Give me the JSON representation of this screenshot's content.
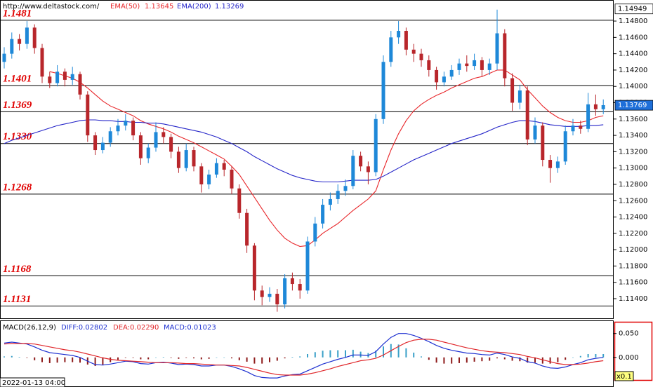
{
  "chart_data": [
    {
      "type": "candlestick",
      "site": "http://www.deltastock.com/",
      "time_label": "2022-01-13 04:00",
      "ylim": [
        1.11151,
        1.15058
      ],
      "yticks": [
        {
          "value": 1.148,
          "label": "1.14800"
        },
        {
          "value": 1.146,
          "label": "1.14600"
        },
        {
          "value": 1.144,
          "label": "1.14400"
        },
        {
          "value": 1.142,
          "label": "1.14200"
        },
        {
          "value": 1.14,
          "label": "1.14000"
        },
        {
          "value": 1.138,
          "label": "1.13800"
        },
        {
          "value": 1.136,
          "label": "1.13600"
        },
        {
          "value": 1.134,
          "label": "1.13400"
        },
        {
          "value": 1.132,
          "label": "1.13200"
        },
        {
          "value": 1.13,
          "label": "1.13000"
        },
        {
          "value": 1.128,
          "label": "1.12800"
        },
        {
          "value": 1.126,
          "label": "1.12600"
        },
        {
          "value": 1.124,
          "label": "1.12400"
        },
        {
          "value": 1.122,
          "label": "1.12200"
        },
        {
          "value": 1.12,
          "label": "1.12000"
        },
        {
          "value": 1.118,
          "label": "1.11800"
        },
        {
          "value": 1.116,
          "label": "1.11600"
        },
        {
          "value": 1.114,
          "label": "1.11400"
        }
      ],
      "up_color": "#1e88d8",
      "down_color": "#b8262b",
      "open": [
        1.143,
        1.144,
        1.1458,
        1.1452,
        1.1472,
        1.1447,
        1.1412,
        1.1404,
        1.1418,
        1.1408,
        1.1415,
        1.139,
        1.134,
        1.1322,
        1.1331,
        1.1345,
        1.1352,
        1.1358,
        1.134,
        1.1312,
        1.1325,
        1.1344,
        1.1338,
        1.132,
        1.13,
        1.1322,
        1.1302,
        1.128,
        1.1292,
        1.1306,
        1.1298,
        1.1275,
        1.1245,
        1.1205,
        1.115,
        1.1142,
        1.1146,
        1.1133,
        1.1165,
        1.1158,
        1.115,
        1.121,
        1.1232,
        1.1255,
        1.1262,
        1.1272,
        1.1278,
        1.1315,
        1.1302,
        1.1295,
        1.136,
        1.143,
        1.146,
        1.1468,
        1.1445,
        1.144,
        1.1432,
        1.142,
        1.1405,
        1.1412,
        1.142,
        1.1428,
        1.1425,
        1.1432,
        1.142,
        1.1428,
        1.1465,
        1.141,
        1.138,
        1.1395,
        1.1335,
        1.1352,
        1.131,
        1.13,
        1.1308,
        1.1345,
        1.1352,
        1.1348,
        1.1378,
        1.1372
      ],
      "high": [
        1.1448,
        1.1466,
        1.1464,
        1.148,
        1.1476,
        1.1452,
        1.1418,
        1.1426,
        1.1422,
        1.1424,
        1.1418,
        1.1394,
        1.1344,
        1.1338,
        1.135,
        1.136,
        1.1366,
        1.1362,
        1.1344,
        1.133,
        1.1356,
        1.135,
        1.1342,
        1.1326,
        1.133,
        1.1326,
        1.1306,
        1.1298,
        1.1312,
        1.131,
        1.1302,
        1.128,
        1.125,
        1.1208,
        1.1156,
        1.1154,
        1.1152,
        1.117,
        1.1172,
        1.1164,
        1.1216,
        1.124,
        1.1262,
        1.127,
        1.128,
        1.1286,
        1.1322,
        1.132,
        1.1308,
        1.1366,
        1.1438,
        1.1468,
        1.148,
        1.1472,
        1.1452,
        1.1446,
        1.1438,
        1.1424,
        1.1418,
        1.1426,
        1.1434,
        1.1438,
        1.144,
        1.1436,
        1.1434,
        1.1494,
        1.147,
        1.1416,
        1.1402,
        1.14,
        1.1362,
        1.1356,
        1.1316,
        1.1314,
        1.1352,
        1.136,
        1.1358,
        1.1392,
        1.139,
        1.1384
      ],
      "low": [
        1.1422,
        1.1434,
        1.1444,
        1.1446,
        1.144,
        1.1404,
        1.1398,
        1.14,
        1.14,
        1.1402,
        1.1384,
        1.1332,
        1.1316,
        1.1318,
        1.1326,
        1.134,
        1.1346,
        1.1334,
        1.1304,
        1.1306,
        1.132,
        1.133,
        1.1312,
        1.1294,
        1.1296,
        1.1296,
        1.127,
        1.1274,
        1.1288,
        1.129,
        1.1268,
        1.1238,
        1.1196,
        1.1138,
        1.1132,
        1.1136,
        1.1124,
        1.1128,
        1.115,
        1.114,
        1.1146,
        1.1204,
        1.1226,
        1.1248,
        1.1256,
        1.1266,
        1.1274,
        1.1296,
        1.128,
        1.129,
        1.1354,
        1.1424,
        1.1452,
        1.1438,
        1.143,
        1.1424,
        1.1412,
        1.1396,
        1.14,
        1.1408,
        1.1414,
        1.1418,
        1.142,
        1.1412,
        1.1414,
        1.142,
        1.14,
        1.137,
        1.1372,
        1.1328,
        1.133,
        1.1302,
        1.1282,
        1.1294,
        1.1304,
        1.134,
        1.1342,
        1.1344,
        1.1364,
        1.1366
      ],
      "close": [
        1.144,
        1.1458,
        1.1452,
        1.1472,
        1.1447,
        1.1412,
        1.1404,
        1.1418,
        1.1408,
        1.1415,
        1.139,
        1.134,
        1.1322,
        1.1331,
        1.1345,
        1.1352,
        1.1358,
        1.134,
        1.1312,
        1.1325,
        1.1344,
        1.1338,
        1.132,
        1.13,
        1.1322,
        1.1302,
        1.128,
        1.1292,
        1.1306,
        1.1298,
        1.1275,
        1.1245,
        1.1205,
        1.115,
        1.1142,
        1.1146,
        1.1133,
        1.1165,
        1.1158,
        1.115,
        1.121,
        1.1232,
        1.1255,
        1.1262,
        1.1272,
        1.1278,
        1.1315,
        1.1302,
        1.1295,
        1.136,
        1.143,
        1.146,
        1.1468,
        1.1445,
        1.144,
        1.1432,
        1.142,
        1.1405,
        1.1412,
        1.142,
        1.1428,
        1.1425,
        1.1432,
        1.142,
        1.1428,
        1.1465,
        1.141,
        1.138,
        1.1395,
        1.1335,
        1.1352,
        1.131,
        1.13,
        1.1308,
        1.1345,
        1.1352,
        1.1348,
        1.1378,
        1.1372,
        1.1377
      ],
      "series": [
        {
          "name": "EMA(50)",
          "value": 1.13645,
          "color": "#e8262a",
          "values": [
            null,
            null,
            null,
            null,
            null,
            null,
            1.1418,
            1.1416,
            1.1413,
            1.141,
            1.1405,
            1.1398,
            1.139,
            1.1382,
            1.1376,
            1.1372,
            1.1368,
            1.1364,
            1.1358,
            1.1354,
            1.1351,
            1.1348,
            1.1344,
            1.1339,
            1.1335,
            1.1331,
            1.1326,
            1.1321,
            1.1316,
            1.1311,
            1.1302,
            1.1292,
            1.1278,
            1.1264,
            1.125,
            1.1236,
            1.1224,
            1.1214,
            1.1208,
            1.1204,
            1.1205,
            1.1212,
            1.122,
            1.1226,
            1.1232,
            1.124,
            1.1248,
            1.1255,
            1.1262,
            1.1272,
            1.1298,
            1.1322,
            1.1342,
            1.1358,
            1.137,
            1.1378,
            1.1384,
            1.1389,
            1.1393,
            1.1398,
            1.1402,
            1.1406,
            1.141,
            1.1412,
            1.1416,
            1.142,
            1.142,
            1.1414,
            1.1408,
            1.1396,
            1.1386,
            1.1376,
            1.1368,
            1.1362,
            1.1358,
            1.1356,
            1.1356,
            1.1358,
            1.1362,
            1.1364
          ]
        },
        {
          "name": "EMA(200)",
          "value": 1.13269,
          "color": "#2424c8",
          "values": [
            1.133,
            1.1334,
            1.1337,
            1.134,
            1.1343,
            1.1346,
            1.1349,
            1.1352,
            1.1354,
            1.1356,
            1.1358,
            1.1359,
            1.1359,
            1.1358,
            1.1358,
            1.1357,
            1.1357,
            1.1356,
            1.1356,
            1.1355,
            1.1355,
            1.1354,
            1.1352,
            1.135,
            1.1348,
            1.1346,
            1.1344,
            1.1341,
            1.1338,
            1.1334,
            1.133,
            1.1325,
            1.132,
            1.1314,
            1.1309,
            1.1304,
            1.1299,
            1.1295,
            1.1291,
            1.1288,
            1.1286,
            1.1284,
            1.1283,
            1.1283,
            1.1283,
            1.1284,
            1.1285,
            1.1285,
            1.1285,
            1.1286,
            1.129,
            1.1295,
            1.13,
            1.1305,
            1.131,
            1.1314,
            1.1318,
            1.1322,
            1.1326,
            1.133,
            1.1333,
            1.1336,
            1.1339,
            1.1342,
            1.1346,
            1.135,
            1.1353,
            1.1356,
            1.1358,
            1.1358,
            1.1357,
            1.1355,
            1.1353,
            1.1352,
            1.1351,
            1.1351,
            1.1351,
            1.1352,
            1.1352,
            1.1353
          ]
        }
      ],
      "levels": [
        1.1481,
        1.1401,
        1.1369,
        {
          "value": 1.133,
          "label": "1.1330"
        },
        1.1268,
        1.1168,
        1.1131
      ],
      "level_color": "#e00000",
      "price_markers": [
        1.14949,
        1.13769
      ]
    },
    {
      "type": "macd",
      "title": "MACD(26,12,9)",
      "scale_label": "x0.1",
      "ylim": [
        -0.062,
        0.076
      ],
      "yticks": [
        {
          "value": 0.05,
          "label": "0.050"
        },
        {
          "value": 0,
          "label": "0.000"
        }
      ],
      "series": [
        {
          "name": "DIFF:0.02802",
          "color": "#1c2fd0",
          "values": [
            0.03,
            0.032,
            0.03,
            0.028,
            0.022,
            0.015,
            0.01,
            0.008,
            0.006,
            0.004,
            0.0,
            -0.008,
            -0.015,
            -0.016,
            -0.014,
            -0.011,
            -0.008,
            -0.009,
            -0.013,
            -0.014,
            -0.011,
            -0.01,
            -0.012,
            -0.015,
            -0.014,
            -0.015,
            -0.018,
            -0.018,
            -0.016,
            -0.016,
            -0.019,
            -0.024,
            -0.03,
            -0.038,
            -0.042,
            -0.043,
            -0.043,
            -0.039,
            -0.036,
            -0.035,
            -0.028,
            -0.021,
            -0.014,
            -0.009,
            -0.004,
            0.0,
            0.005,
            0.005,
            0.004,
            0.012,
            0.028,
            0.042,
            0.05,
            0.05,
            0.046,
            0.04,
            0.033,
            0.025,
            0.019,
            0.015,
            0.012,
            0.009,
            0.008,
            0.006,
            0.005,
            0.009,
            0.006,
            0.001,
            -0.002,
            -0.009,
            -0.012,
            -0.018,
            -0.022,
            -0.023,
            -0.02,
            -0.015,
            -0.011,
            -0.005,
            -0.002,
            0.0
          ]
        },
        {
          "name": "DEA:0.02290",
          "color": "#e0262a",
          "values": [
            0.028,
            0.029,
            0.029,
            0.029,
            0.028,
            0.025,
            0.022,
            0.019,
            0.016,
            0.014,
            0.011,
            0.007,
            0.003,
            -0.001,
            -0.004,
            -0.006,
            -0.007,
            -0.008,
            -0.009,
            -0.01,
            -0.011,
            -0.011,
            -0.011,
            -0.012,
            -0.013,
            -0.013,
            -0.014,
            -0.015,
            -0.016,
            -0.016,
            -0.017,
            -0.018,
            -0.021,
            -0.025,
            -0.029,
            -0.033,
            -0.036,
            -0.037,
            -0.037,
            -0.037,
            -0.035,
            -0.032,
            -0.028,
            -0.024,
            -0.019,
            -0.015,
            -0.011,
            -0.007,
            -0.005,
            -0.002,
            0.005,
            0.014,
            0.023,
            0.031,
            0.036,
            0.038,
            0.038,
            0.036,
            0.032,
            0.028,
            0.024,
            0.02,
            0.017,
            0.014,
            0.012,
            0.011,
            0.01,
            0.008,
            0.006,
            0.002,
            -0.001,
            -0.005,
            -0.009,
            -0.013,
            -0.015,
            -0.015,
            -0.014,
            -0.012,
            -0.009,
            -0.007
          ]
        },
        {
          "name": "MACD:0.01023",
          "color": "#1c2fd0",
          "up_color": "#3aa0c8",
          "down_color": "#8e1b1b",
          "values": [
            0.002,
            0.003,
            0.001,
            -0.001,
            -0.006,
            -0.01,
            -0.012,
            -0.011,
            -0.01,
            -0.01,
            -0.011,
            -0.015,
            -0.018,
            -0.015,
            -0.01,
            -0.005,
            -0.001,
            -0.001,
            -0.004,
            -0.004,
            0.0,
            0.001,
            -0.001,
            -0.003,
            -0.001,
            -0.002,
            -0.004,
            -0.003,
            0.0,
            0.0,
            -0.002,
            -0.006,
            -0.009,
            -0.013,
            -0.013,
            -0.01,
            -0.007,
            -0.002,
            0.001,
            0.002,
            0.007,
            0.011,
            0.014,
            0.015,
            0.015,
            0.015,
            0.016,
            0.012,
            0.009,
            0.014,
            0.023,
            0.028,
            0.027,
            0.019,
            0.01,
            0.002,
            -0.005,
            -0.011,
            -0.013,
            -0.013,
            -0.012,
            -0.011,
            -0.009,
            -0.008,
            -0.007,
            -0.002,
            -0.004,
            -0.007,
            -0.008,
            -0.011,
            -0.011,
            -0.013,
            -0.013,
            -0.01,
            -0.005,
            0.0,
            0.003,
            0.007,
            0.007,
            0.007
          ]
        }
      ]
    }
  ]
}
